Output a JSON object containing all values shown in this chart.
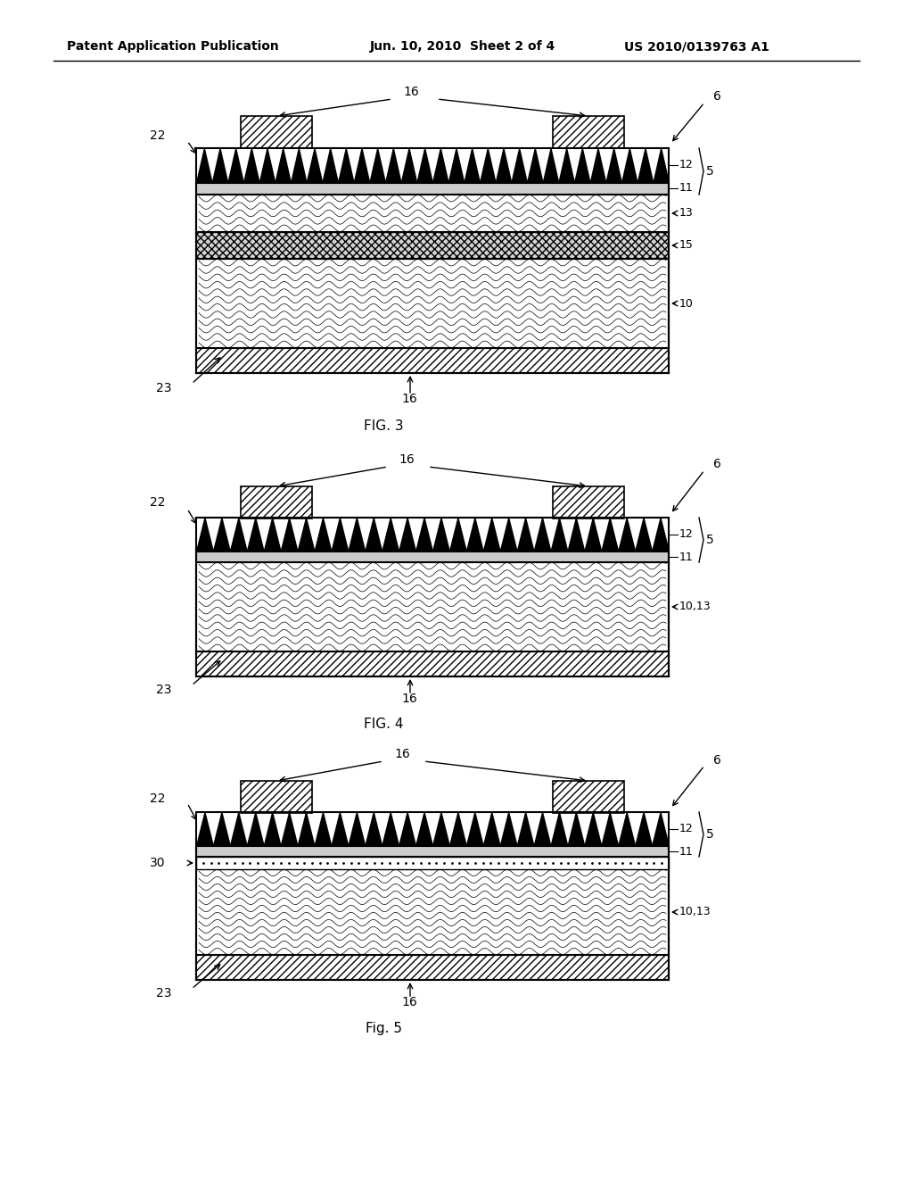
{
  "title_left": "Patent Application Publication",
  "title_mid": "Jun. 10, 2010  Sheet 2 of 4",
  "title_right": "US 2010/0139763 A1",
  "bg_color": "#ffffff"
}
